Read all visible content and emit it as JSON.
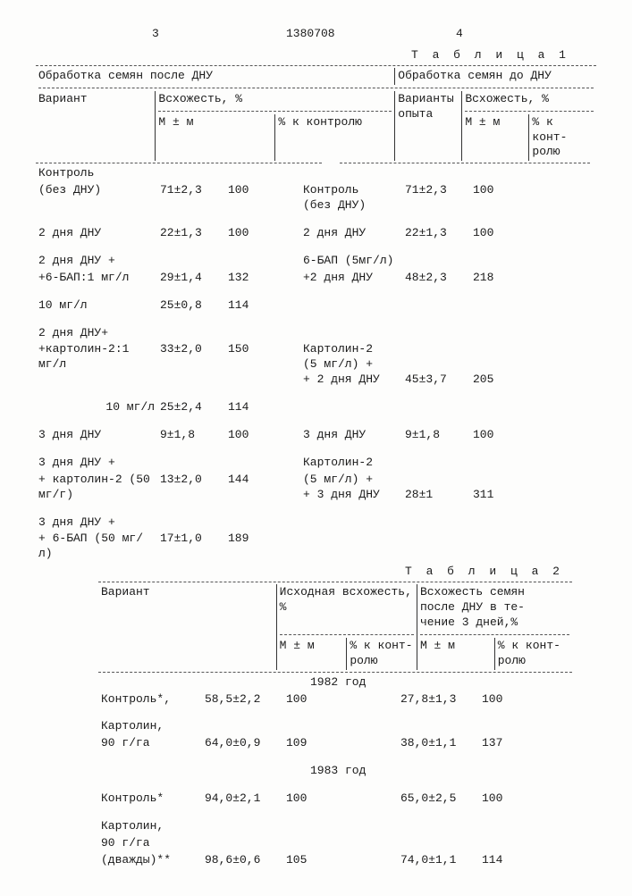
{
  "colors": {
    "text": "#1a1a1a",
    "bg": "#fdfdfc",
    "rule": "#333",
    "dash": "#555"
  },
  "typography": {
    "family": "Courier New, monospace",
    "size_pt": 10
  },
  "page": {
    "col_left": "3",
    "doc_number": "1380708",
    "col_right": "4"
  },
  "table1": {
    "label": "Т а б л и ц а 1",
    "head_left": "Обработка семян  после  ДНУ",
    "head_right": "Обработка семян до ДНУ",
    "variant": "Вариант",
    "variant_r": "Варианты опыта",
    "germ": "Всхожесть, %",
    "mpm": "М ± м",
    "pct_ctrl": "% к контролю",
    "pct_ctrl_2l_a": "% к конт-",
    "pct_ctrl_2l_b": "ролю",
    "rows": [
      {
        "l_var_a": "Контроль",
        "l_var_b": "(без ДНУ)",
        "l_m": "71±2,3",
        "l_p": "100",
        "r_var_a": "Контроль",
        "r_var_b": "(без ДНУ)",
        "r_m": "71±2,3",
        "r_p": "100"
      },
      {
        "l_var_a": "2 дня ДНУ",
        "l_var_b": "",
        "l_m": "22±1,3",
        "l_p": "100",
        "r_var_a": "2 дня ДНУ",
        "r_var_b": "",
        "r_m": "22±1,3",
        "r_p": "100"
      },
      {
        "l_var_a": "2 дня ДНУ +",
        "l_var_b": "+6-БАП:1 мг/л",
        "l_m": "29±1,4",
        "l_p": "132",
        "r_var_a": "6-БАП (5мг/л)",
        "r_var_b": "+2 дня ДНУ",
        "r_m": "48±2,3",
        "r_p": "218"
      },
      {
        "l_var_a": "10 мг/л",
        "l_var_b": "",
        "l_m": "25±0,8",
        "l_p": "114",
        "r_var_a": "",
        "r_var_b": "",
        "r_m": "",
        "r_p": ""
      },
      {
        "l_var_a": "2 дня ДНУ+",
        "l_var_b": "+картолин-2:1 мг/л",
        "l_m": "33±2,0",
        "l_p": "150",
        "r_var_a": "Картолин-2",
        "r_var_b": "(5 мг/л) +",
        "r_var_c": "+ 2 дня ДНУ",
        "r_m": "45±3,7",
        "r_p": "205"
      },
      {
        "l_var_a": "",
        "l_var_b": "10 мг/л",
        "l_m": "25±2,4",
        "l_p": "114",
        "r_var_a": "",
        "r_var_b": "",
        "r_m": "",
        "r_p": ""
      },
      {
        "l_var_a": "3 дня ДНУ",
        "l_var_b": "",
        "l_m": "9±1,8",
        "l_p": "100",
        "r_var_a": "3 дня ДНУ",
        "r_var_b": "",
        "r_m": "9±1,8",
        "r_p": "100"
      },
      {
        "l_var_a": "3 дня ДНУ +",
        "l_var_b": "+ картолин-2 (50 мг/г)",
        "l_m": "13±2,0",
        "l_p": "144",
        "r_var_a": "Картолин-2",
        "r_var_b": "(5 мг/л) +",
        "r_var_c": "+ 3 дня ДНУ",
        "r_m": "28±1",
        "r_p": "311"
      },
      {
        "l_var_a": "3 дня ДНУ +",
        "l_var_b": "+ 6-БАП   (50 мг/л)",
        "l_m": "17±1,0",
        "l_p": "189",
        "r_var_a": "",
        "r_var_b": "",
        "r_m": "",
        "r_p": ""
      }
    ]
  },
  "table2": {
    "label": "Т а б л и ц а  2",
    "variant": "Вариант",
    "germ_initial": "Исходная всхожесть, %",
    "germ_after_a": "Всхожесть семян",
    "germ_after_b": "после  ДНУ в те-",
    "germ_after_c": "чение 3 дней,%",
    "mpm": "М ± м",
    "pct_ctrl_a": "% к конт-",
    "pct_ctrl_b": "ролю",
    "year1": "1982 год",
    "year2": "1983 год",
    "rows": [
      {
        "var_a": "Контроль*",
        "var_b": ", ",
        "m1": "58,5±2,2",
        "p1": "100",
        "m2": "27,8±1,3",
        "p2": "100"
      },
      {
        "var_a": "Картолин,",
        "var_b": "90 г/га",
        "m1": "64,0±0,9",
        "p1": "109",
        "m2": "38,0±1,1",
        "p2": "137"
      },
      {
        "var_a": "Контроль*",
        "var_b": "",
        "m1": "94,0±2,1",
        "p1": "100",
        "m2": "65,0±2,5",
        "p2": "100"
      },
      {
        "var_a": "Картолин,",
        "var_b": "90 г/га",
        "var_c": "(дважды)**",
        "m1": "98,6±0,6",
        "p1": "105",
        "m2": "74,0±1,1",
        "p2": "114"
      }
    ]
  }
}
